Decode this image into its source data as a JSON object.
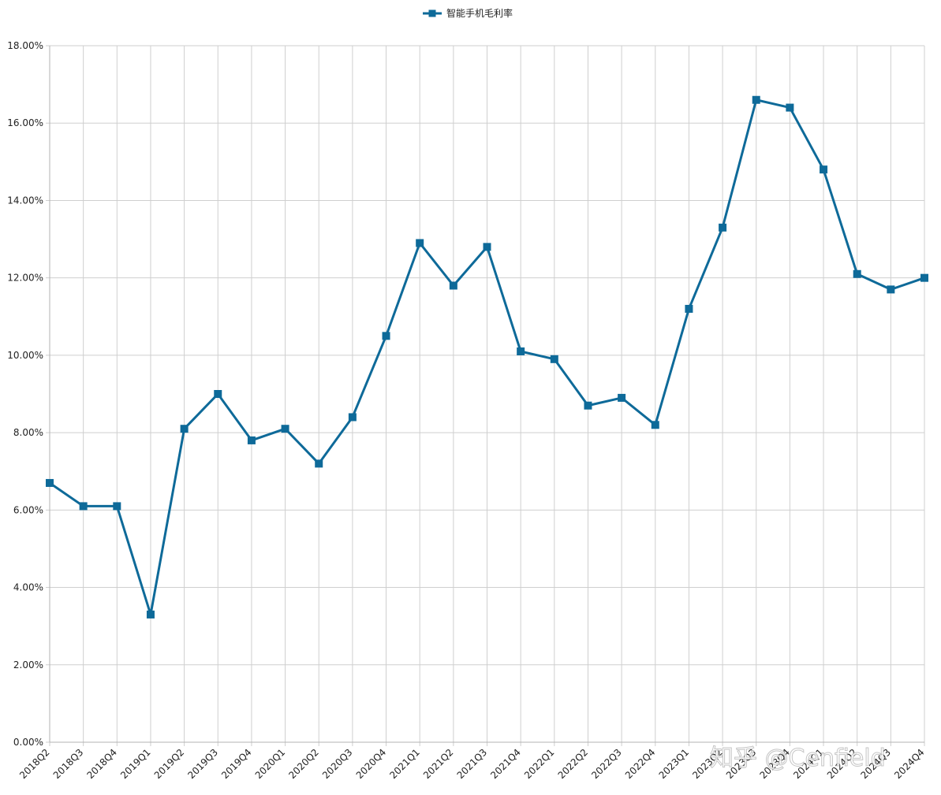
{
  "chart_data": {
    "type": "line",
    "title": "",
    "xlabel": "",
    "ylabel": "",
    "categories": [
      "2018Q2",
      "2018Q3",
      "2018Q4",
      "2019Q1",
      "2019Q2",
      "2019Q3",
      "2019Q4",
      "2020Q1",
      "2020Q2",
      "2020Q3",
      "2020Q4",
      "2021Q1",
      "2021Q2",
      "2021Q3",
      "2021Q4",
      "2022Q1",
      "2022Q2",
      "2022Q3",
      "2022Q4",
      "2023Q1",
      "2023Q2",
      "2023Q3",
      "2023Q4",
      "2024Q1",
      "2024Q2",
      "2024Q3",
      "2024Q4"
    ],
    "series": [
      {
        "name": "智能手机毛利率",
        "color": "#0e6a99",
        "values": [
          6.7,
          6.1,
          6.1,
          3.3,
          8.1,
          9.0,
          7.8,
          8.1,
          7.2,
          8.4,
          10.5,
          12.9,
          11.8,
          12.8,
          10.1,
          9.9,
          8.7,
          8.9,
          8.2,
          11.2,
          13.3,
          16.6,
          16.4,
          14.8,
          12.1,
          11.7,
          12.0
        ]
      }
    ],
    "ylim": [
      0,
      18
    ],
    "yticks": [
      "0.00%",
      "2.00%",
      "4.00%",
      "6.00%",
      "8.00%",
      "10.00%",
      "12.00%",
      "14.00%",
      "16.00%",
      "18.00%"
    ],
    "grid": true,
    "legend_position": "top-center",
    "marker": "square"
  },
  "watermark": "知乎 @Cenfield"
}
